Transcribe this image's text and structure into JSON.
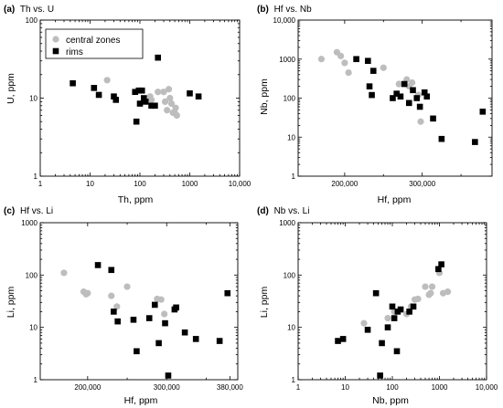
{
  "chart_data": [
    {
      "id": "a",
      "type": "scatter",
      "panel_label": "(a)",
      "title": "Th vs. U",
      "xlabel": "Th, ppm",
      "ylabel": "U, ppm",
      "xscale": "log",
      "yscale": "log",
      "xlim": [
        1,
        10000
      ],
      "ylim": [
        1,
        100
      ],
      "xticks": [
        1,
        10,
        100,
        1000,
        10000
      ],
      "xtick_labels": [
        "1",
        "10",
        "100",
        "1000",
        "10,000"
      ],
      "yticks": [
        1,
        10,
        100
      ],
      "ytick_labels": [
        "1",
        "10",
        "100"
      ],
      "legend": {
        "placement": "top-left",
        "entries": [
          {
            "label": "central zones",
            "series": "central zones"
          },
          {
            "label": "rims",
            "series": "rims"
          }
        ]
      },
      "series": [
        {
          "name": "central zones",
          "color": "#bdbdbd",
          "marker": "circle",
          "points": [
            [
              22,
              17
            ],
            [
              160,
              10.5
            ],
            [
              170,
              9.5
            ],
            [
              230,
              12
            ],
            [
              300,
              12
            ],
            [
              320,
              9
            ],
            [
              350,
              7
            ],
            [
              380,
              13
            ],
            [
              400,
              10
            ],
            [
              430,
              8.5
            ],
            [
              460,
              6.5
            ],
            [
              500,
              6.5
            ],
            [
              520,
              7.5
            ],
            [
              550,
              6
            ]
          ]
        },
        {
          "name": "rims",
          "color": "#000000",
          "marker": "square",
          "points": [
            [
              4.5,
              15.5
            ],
            [
              12,
              13.5
            ],
            [
              15,
              11
            ],
            [
              30,
              10.5
            ],
            [
              33,
              9.5
            ],
            [
              80,
              12
            ],
            [
              85,
              5
            ],
            [
              95,
              12.5
            ],
            [
              100,
              8.5
            ],
            [
              110,
              12.5
            ],
            [
              120,
              10
            ],
            [
              130,
              9
            ],
            [
              170,
              8
            ],
            [
              200,
              8
            ],
            [
              230,
              33
            ],
            [
              1000,
              11.5
            ],
            [
              1500,
              10.5
            ]
          ]
        }
      ]
    },
    {
      "id": "b",
      "type": "scatter",
      "panel_label": "(b)",
      "title": "Hf vs. Nb",
      "xlabel": "Hf, ppm",
      "ylabel": "Nb, ppm",
      "xscale": "linear",
      "yscale": "log",
      "xlim": [
        140000,
        390000
      ],
      "ylim": [
        1,
        10000
      ],
      "xticks": [
        200000,
        300000
      ],
      "xtick_labels": [
        "200,000",
        "300,000"
      ],
      "xminor": [
        250000,
        350000
      ],
      "yticks": [
        1,
        10,
        100,
        1000,
        10000
      ],
      "ytick_labels": [
        "1",
        "10",
        "100",
        "1000",
        "10,000"
      ],
      "series": [
        {
          "name": "central zones",
          "color": "#bdbdbd",
          "marker": "circle",
          "points": [
            [
              170000,
              1000
            ],
            [
              190000,
              1500
            ],
            [
              195000,
              1200
            ],
            [
              200000,
              800
            ],
            [
              205000,
              450
            ],
            [
              250000,
              600
            ],
            [
              270000,
              230
            ],
            [
              280000,
              300
            ],
            [
              283000,
              200
            ],
            [
              287000,
              250
            ],
            [
              295000,
              120
            ],
            [
              298000,
              25
            ]
          ]
        },
        {
          "name": "rims",
          "color": "#000000",
          "marker": "square",
          "points": [
            [
              215000,
              1000
            ],
            [
              230000,
              900
            ],
            [
              232000,
              200
            ],
            [
              235000,
              120
            ],
            [
              237000,
              500
            ],
            [
              262000,
              100
            ],
            [
              267000,
              130
            ],
            [
              272000,
              110
            ],
            [
              277000,
              230
            ],
            [
              283000,
              75
            ],
            [
              288000,
              160
            ],
            [
              293000,
              100
            ],
            [
              297000,
              60
            ],
            [
              303000,
              140
            ],
            [
              306000,
              110
            ],
            [
              314000,
              30
            ],
            [
              325000,
              9
            ],
            [
              368000,
              7.5
            ],
            [
              378000,
              45
            ]
          ]
        }
      ]
    },
    {
      "id": "c",
      "type": "scatter",
      "panel_label": "(c)",
      "title": "Hf vs. Li",
      "xlabel": "Hf, ppm",
      "ylabel": "Li, ppm",
      "xscale": "linear",
      "yscale": "log",
      "xlim": [
        140000,
        390000
      ],
      "ylim": [
        1,
        1000
      ],
      "xticks": [
        200000,
        300000,
        380000
      ],
      "xtick_labels": [
        "200,000",
        "300,000",
        "380,000"
      ],
      "xminor": [
        250000,
        350000
      ],
      "yticks": [
        1,
        10,
        100,
        1000
      ],
      "ytick_labels": [
        "1",
        "10",
        "100",
        "1000"
      ],
      "series": [
        {
          "name": "central zones",
          "color": "#bdbdbd",
          "marker": "circle",
          "points": [
            [
              170000,
              110
            ],
            [
              195000,
              48
            ],
            [
              198000,
              43
            ],
            [
              200000,
              45
            ],
            [
              230000,
              40
            ],
            [
              237000,
              25
            ],
            [
              250000,
              60
            ],
            [
              288000,
              35
            ],
            [
              293000,
              34
            ],
            [
              297000,
              18
            ]
          ]
        },
        {
          "name": "rims",
          "color": "#000000",
          "marker": "square",
          "points": [
            [
              213000,
              155
            ],
            [
              230000,
              125
            ],
            [
              233000,
              20
            ],
            [
              238000,
              13
            ],
            [
              258000,
              14
            ],
            [
              262000,
              3.5
            ],
            [
              278000,
              15
            ],
            [
              285000,
              27
            ],
            [
              290000,
              5
            ],
            [
              298000,
              12
            ],
            [
              302000,
              1.2
            ],
            [
              310000,
              22
            ],
            [
              312000,
              24
            ],
            [
              323000,
              8
            ],
            [
              337000,
              6
            ],
            [
              367000,
              5.5
            ],
            [
              377000,
              45
            ]
          ]
        }
      ]
    },
    {
      "id": "d",
      "type": "scatter",
      "panel_label": "(d)",
      "title": "Nb vs. Li",
      "xlabel": "Nb, ppm",
      "ylabel": "Li, ppm",
      "xscale": "log",
      "yscale": "log",
      "xlim": [
        1,
        10000
      ],
      "ylim": [
        1,
        1000
      ],
      "xticks": [
        1,
        10,
        100,
        1000,
        10000
      ],
      "xtick_labels": [
        "1",
        "10",
        "100",
        "1000",
        "10,000"
      ],
      "yticks": [
        1,
        10,
        100,
        1000
      ],
      "ytick_labels": [
        "1",
        "10",
        "100",
        "1000"
      ],
      "series": [
        {
          "name": "central zones",
          "color": "#bdbdbd",
          "marker": "circle",
          "points": [
            [
              25,
              12
            ],
            [
              80,
              15
            ],
            [
              110,
              20
            ],
            [
              200,
              18
            ],
            [
              250,
              25
            ],
            [
              300,
              34
            ],
            [
              350,
              35
            ],
            [
              500,
              60
            ],
            [
              600,
              42
            ],
            [
              650,
              45
            ],
            [
              700,
              60
            ],
            [
              1000,
              110
            ],
            [
              1200,
              45
            ],
            [
              1500,
              48
            ]
          ]
        },
        {
          "name": "rims",
          "color": "#000000",
          "marker": "square",
          "points": [
            [
              7,
              5.5
            ],
            [
              9,
              6
            ],
            [
              30,
              9
            ],
            [
              45,
              45
            ],
            [
              55,
              1.2
            ],
            [
              60,
              5
            ],
            [
              80,
              10
            ],
            [
              100,
              25
            ],
            [
              110,
              15
            ],
            [
              125,
              3.5
            ],
            [
              130,
              20
            ],
            [
              150,
              22
            ],
            [
              230,
              20
            ],
            [
              280,
              25
            ],
            [
              950,
              130
            ],
            [
              1100,
              160
            ]
          ]
        }
      ]
    }
  ]
}
